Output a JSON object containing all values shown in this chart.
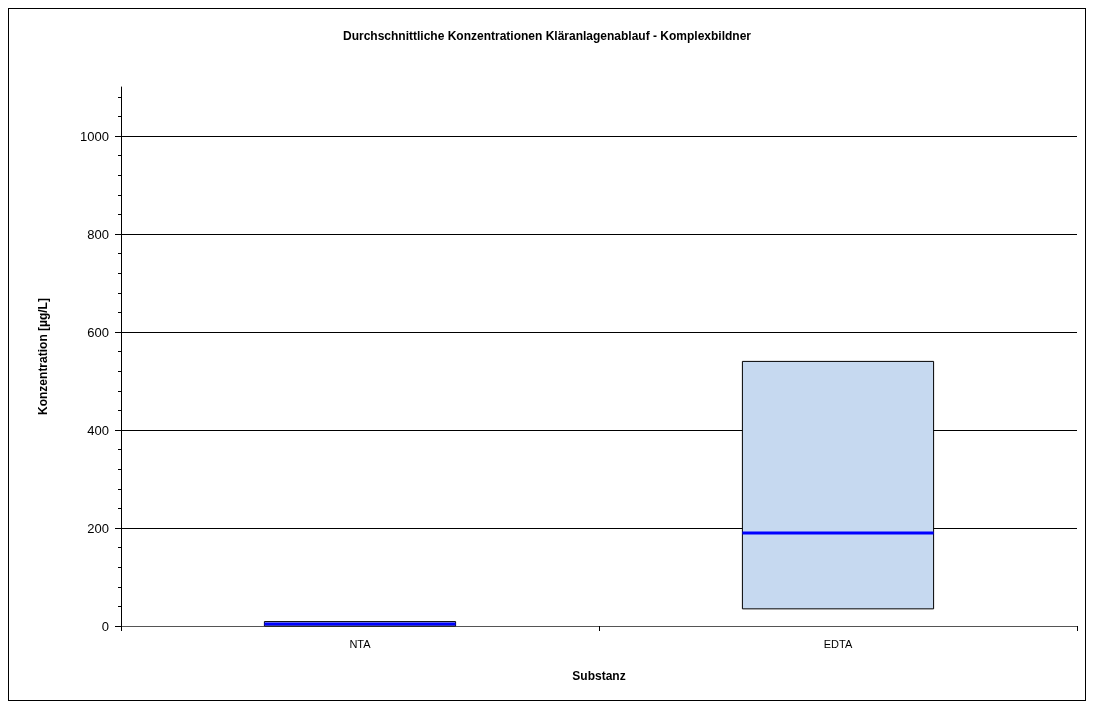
{
  "chart_data": {
    "type": "box",
    "title": "Durchschnittliche Konzentrationen Kläranlagenablauf - Komplexbildner",
    "xlabel": "Substanz",
    "ylabel": "Konzentration [µg/L]",
    "categories": [
      "NTA",
      "EDTA"
    ],
    "series": [
      {
        "color": "#c6d9f0",
        "boxes": [
          {
            "low": 0,
            "q1": 0,
            "median": 4,
            "q3": 9,
            "high": 9
          },
          {
            "low": 35,
            "q1": 35,
            "median": 190,
            "q3": 540,
            "high": 540
          }
        ]
      }
    ],
    "ylim": [
      0,
      1100
    ],
    "yticks": [
      0,
      200,
      400,
      600,
      800,
      1000
    ],
    "grid": "y"
  }
}
